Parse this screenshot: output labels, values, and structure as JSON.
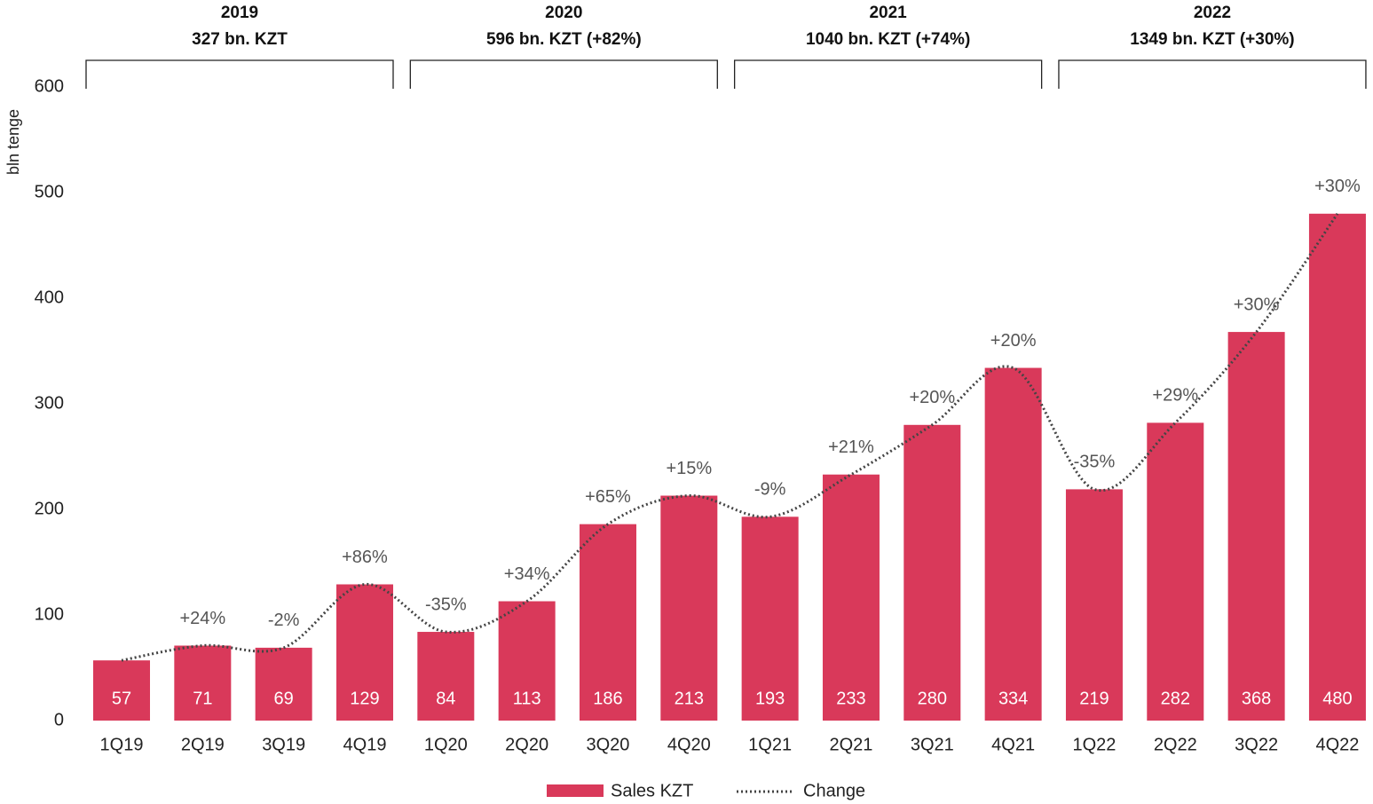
{
  "chart_data": {
    "type": "bar",
    "y_label": "bln tenge",
    "categories": [
      "1Q19",
      "2Q19",
      "3Q19",
      "4Q19",
      "1Q20",
      "2Q20",
      "3Q20",
      "4Q20",
      "1Q21",
      "2Q21",
      "3Q21",
      "4Q21",
      "1Q22",
      "2Q22",
      "3Q22",
      "4Q22"
    ],
    "series": [
      {
        "name": "Sales KZT",
        "color": "#d9395a",
        "values": [
          57,
          71,
          69,
          129,
          84,
          113,
          186,
          213,
          193,
          233,
          280,
          334,
          219,
          282,
          368,
          480
        ]
      },
      {
        "name": "Change",
        "color": "#444444",
        "values": [
          null,
          24,
          -2,
          86,
          -35,
          34,
          65,
          15,
          -9,
          21,
          20,
          20,
          -35,
          29,
          30,
          30
        ],
        "value_labels": [
          null,
          "+24%",
          "-2%",
          "+86%",
          "-35%",
          "+34%",
          "+65%",
          "+15%",
          "-9%",
          "+21%",
          "+20%",
          "+20%",
          "-35%",
          "+29%",
          "+30%",
          "+30%"
        ]
      }
    ],
    "groups": [
      {
        "year": "2019",
        "total": "327 bn. KZT"
      },
      {
        "year": "2020",
        "total": "596 bn. KZT (+82%)"
      },
      {
        "year": "2021",
        "total": "1040 bn. KZT (+74%)"
      },
      {
        "year": "2022",
        "total": "1349 bn. KZT (+30%)"
      }
    ],
    "ylim": [
      0,
      600
    ],
    "yticks": [
      0,
      100,
      200,
      300,
      400,
      500,
      600
    ],
    "grid": false
  }
}
